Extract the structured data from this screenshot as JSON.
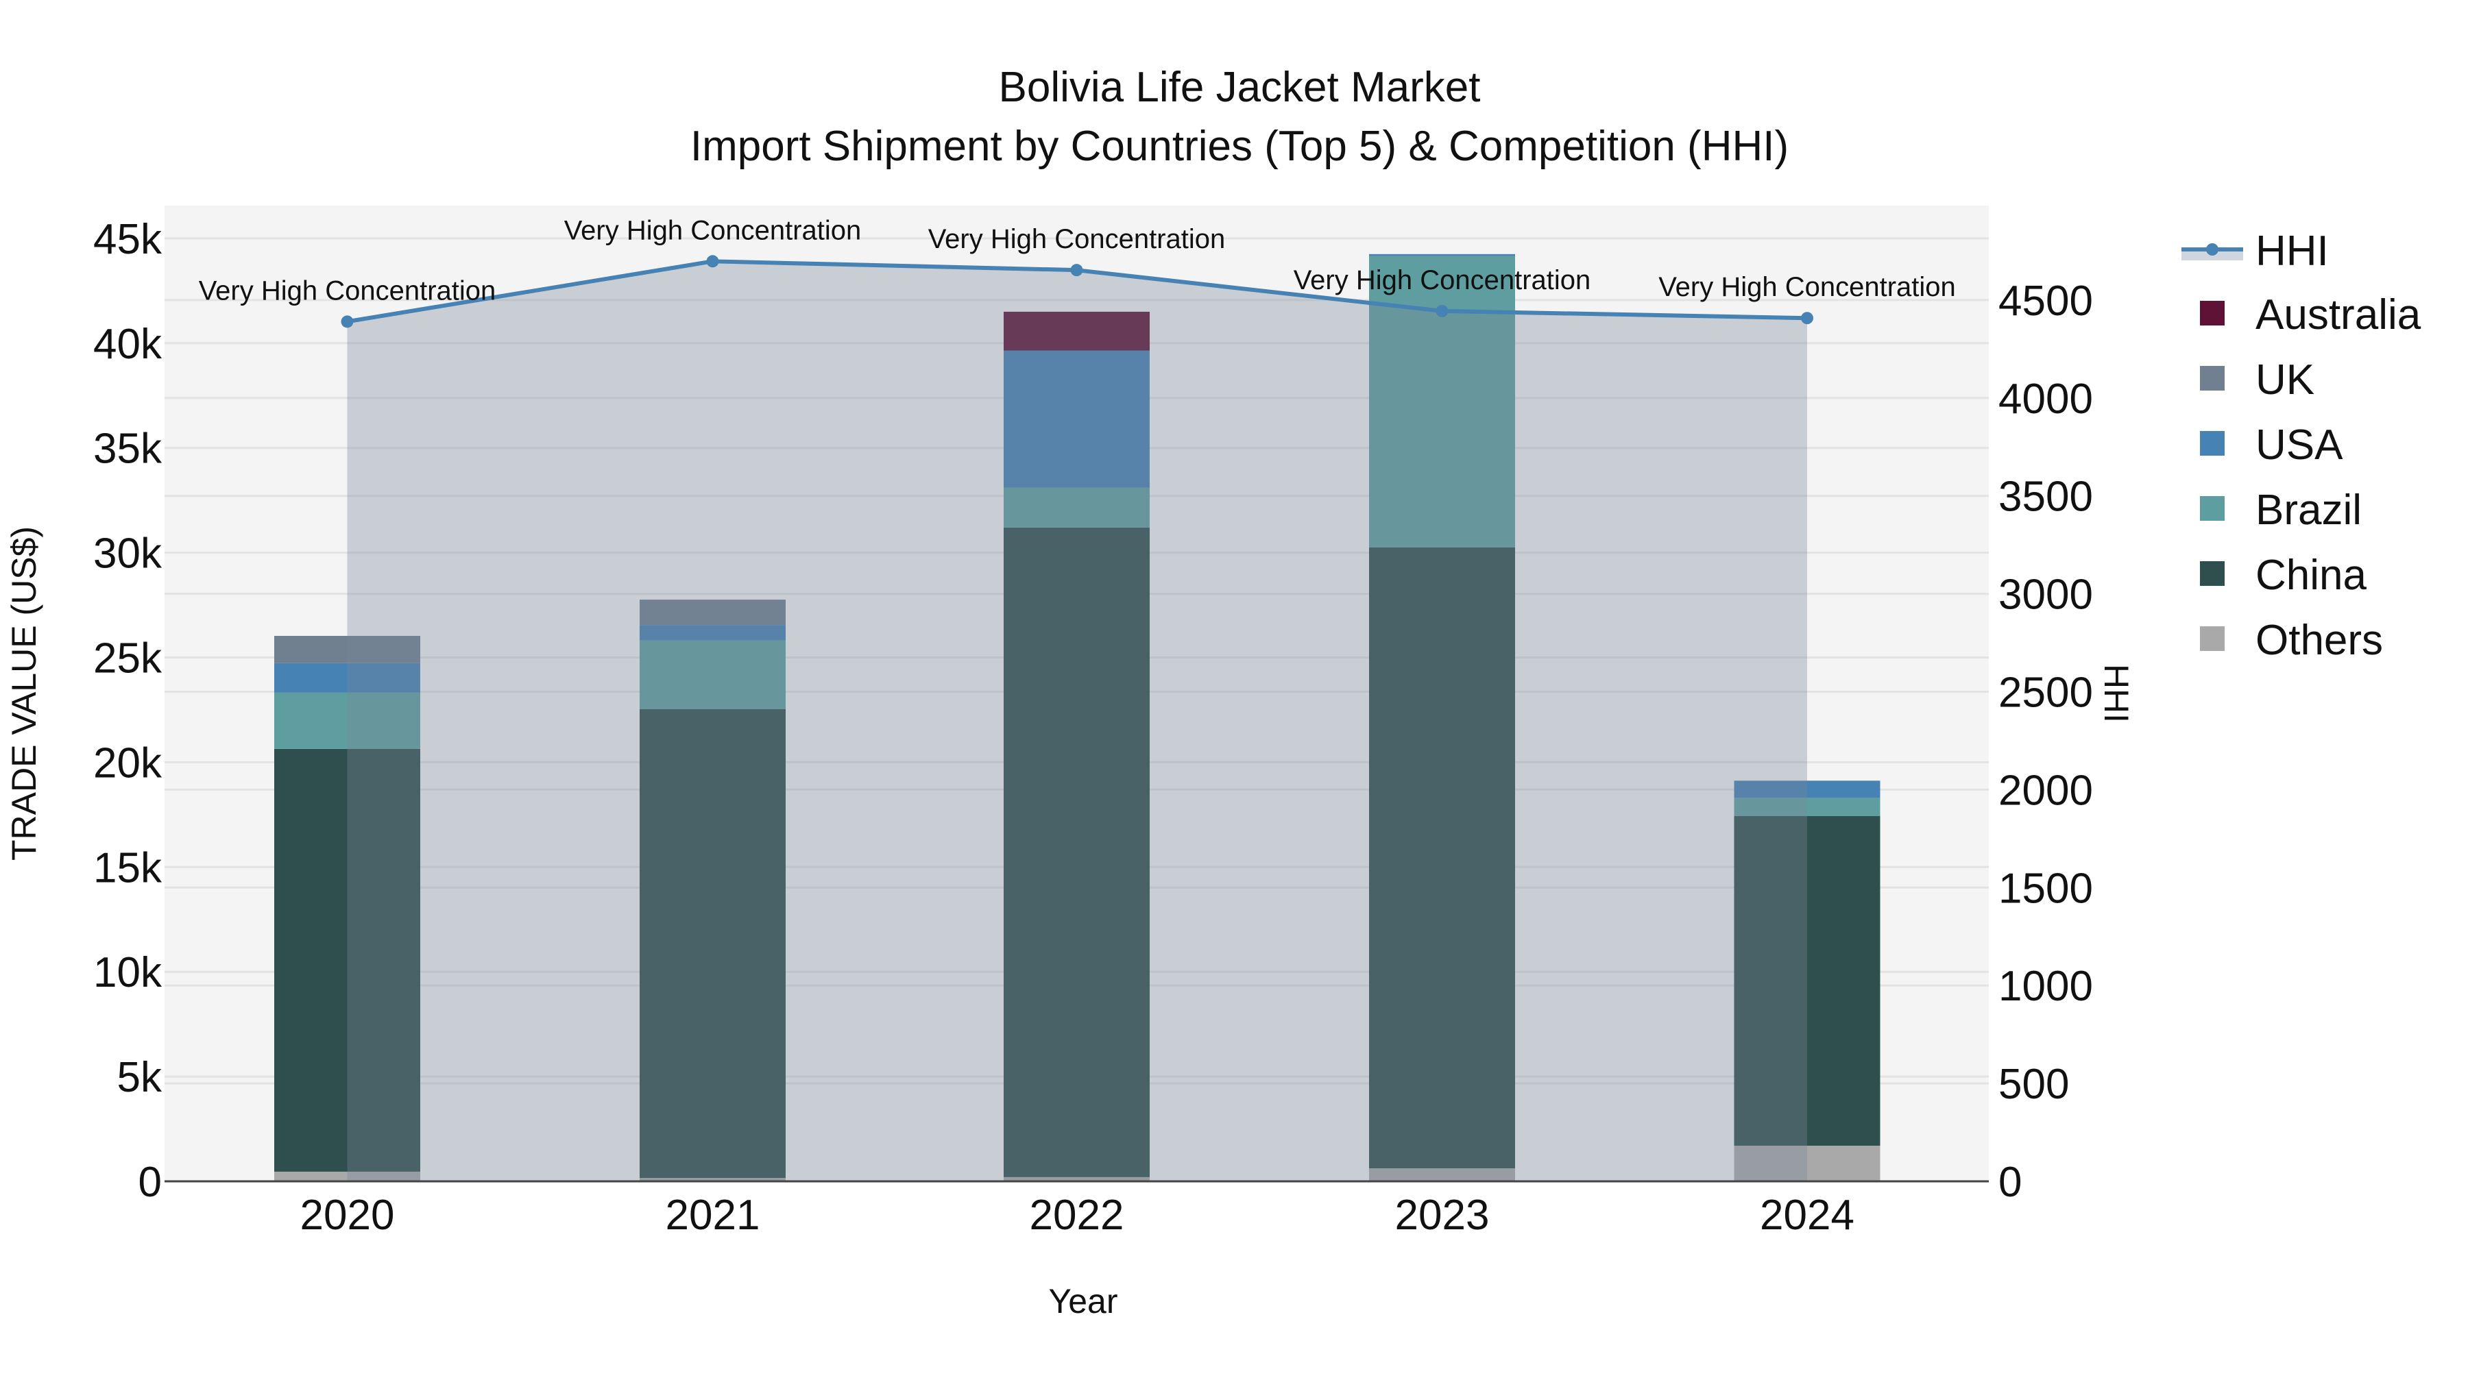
{
  "title": {
    "line1": "Bolivia Life Jacket Market",
    "line2": "Import Shipment by Countries (Top 5) & Competition (HHI)"
  },
  "axes": {
    "x_title": "Year",
    "y_left_title": "TRADE VALUE (US$)",
    "y_right_title": "HHI",
    "y_left_ticks": [
      "0",
      "5k",
      "10k",
      "15k",
      "20k",
      "25k",
      "30k",
      "35k",
      "40k",
      "45k"
    ],
    "y_right_ticks": [
      "0",
      "500",
      "1000",
      "1500",
      "2000",
      "2500",
      "3000",
      "3500",
      "4000",
      "4500"
    ]
  },
  "legend": {
    "items": [
      {
        "label": "HHI",
        "type": "line",
        "color": "#4682b4"
      },
      {
        "label": "Australia",
        "type": "bar",
        "color": "#5f1235"
      },
      {
        "label": "UK",
        "type": "bar",
        "color": "#708090"
      },
      {
        "label": "USA",
        "type": "bar",
        "color": "#4682b4"
      },
      {
        "label": "Brazil",
        "type": "bar",
        "color": "#5f9ea0"
      },
      {
        "label": "China",
        "type": "bar",
        "color": "#2f4f4f"
      },
      {
        "label": "Others",
        "type": "bar",
        "color": "#a9a9a9"
      }
    ]
  },
  "colors": {
    "plot_bg": "#f4f4f4",
    "paper_bg": "#ffffff",
    "grid": "#e3e3e3",
    "hhi_line": "#4682b4",
    "hhi_fill": "rgba(119,136,153,0.35)"
  },
  "chart_data": {
    "type": "bar",
    "barmode": "stack",
    "title": "Bolivia Life Jacket Market — Import Shipment by Countries (Top 5) & Competition (HHI)",
    "xlabel": "Year",
    "ylabel": "TRADE VALUE (US$)",
    "y2label": "HHI",
    "categories": [
      "2020",
      "2021",
      "2022",
      "2023",
      "2024"
    ],
    "ylim": [
      0,
      46500
    ],
    "y2lim": [
      0,
      4980
    ],
    "grid": true,
    "legend_position": "right",
    "series": [
      {
        "name": "Others",
        "type": "bar",
        "color": "#a9a9a9",
        "values": [
          460,
          160,
          200,
          620,
          1700
        ]
      },
      {
        "name": "China",
        "type": "bar",
        "color": "#2f4f4f",
        "values": [
          20180,
          22380,
          31000,
          29630,
          15730
        ]
      },
      {
        "name": "Brazil",
        "type": "bar",
        "color": "#5f9ea0",
        "values": [
          2680,
          3270,
          1910,
          13910,
          870
        ]
      },
      {
        "name": "USA",
        "type": "bar",
        "color": "#4682b4",
        "values": [
          1410,
          740,
          6540,
          90,
          820
        ]
      },
      {
        "name": "UK",
        "type": "bar",
        "color": "#708090",
        "values": [
          1300,
          1210,
          0,
          0,
          0
        ]
      },
      {
        "name": "Australia",
        "type": "bar",
        "color": "#5f1235",
        "values": [
          0,
          0,
          1850,
          0,
          0
        ]
      },
      {
        "name": "HHI",
        "type": "line",
        "axis": "y2",
        "fill": "tozeroy",
        "color": "#4682b4",
        "values": [
          4390,
          4698,
          4653,
          4444,
          4408
        ]
      }
    ],
    "annotations": [
      {
        "x": "2020",
        "text": "Very High Concentration"
      },
      {
        "x": "2021",
        "text": "Very High Concentration"
      },
      {
        "x": "2022",
        "text": "Very High Concentration"
      },
      {
        "x": "2023",
        "text": "Very High Concentration"
      },
      {
        "x": "2024",
        "text": "Very High Concentration"
      }
    ]
  }
}
